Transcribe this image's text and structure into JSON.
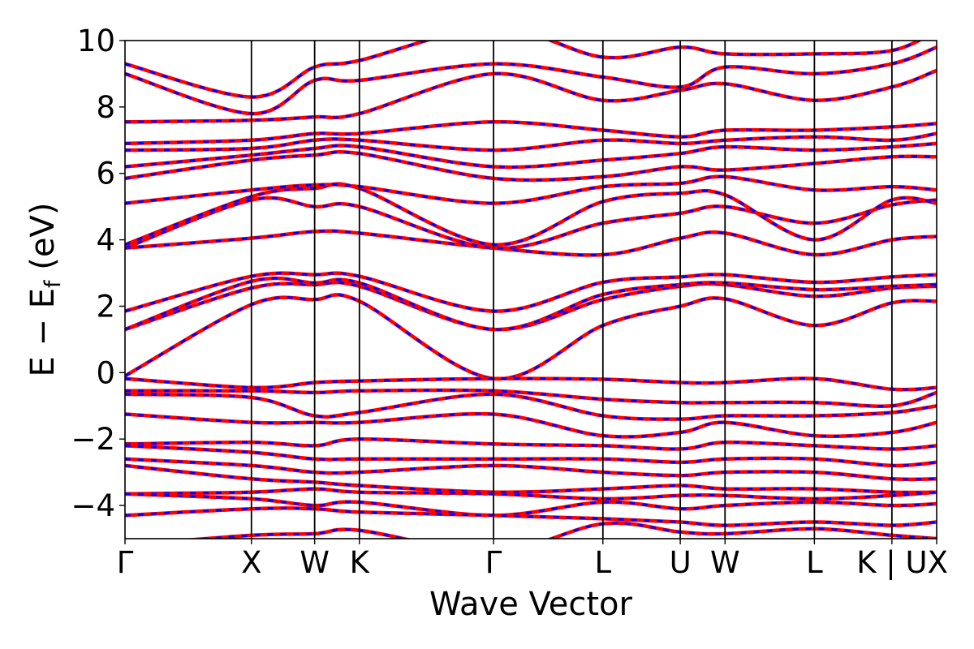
{
  "chart_data": {
    "type": "line",
    "title": "",
    "xlabel": "Wave Vector",
    "ylabel": "E − E_f (eV)",
    "ylabel_main": "E − E",
    "ylabel_sub": "f",
    "ylabel_tail": " (eV)",
    "ylim": [
      -5,
      10
    ],
    "y_ticks": [
      "−4",
      "−2",
      "0",
      "2",
      "4",
      "6",
      "8",
      "10"
    ],
    "y_tick_values": [
      -4,
      -2,
      0,
      2,
      4,
      6,
      8,
      10
    ],
    "x_ticks": [
      {
        "label": "Γ",
        "x": 0
      },
      {
        "label": "X",
        "x": 1.0
      },
      {
        "label": "W",
        "x": 1.5
      },
      {
        "label": "K",
        "x": 1.854
      },
      {
        "label": "Γ",
        "x": 2.915
      },
      {
        "label": "L",
        "x": 3.78
      },
      {
        "label": "U",
        "x": 4.392
      },
      {
        "label": "W",
        "x": 4.746
      },
      {
        "label": "L",
        "x": 5.453
      },
      {
        "label": "K | U",
        "x": 6.066
      },
      {
        "label": "X",
        "x": 6.42
      }
    ],
    "xlim": [
      0,
      6.42
    ],
    "grid": false,
    "legend": "none",
    "series_colors": {
      "line": "#ff0000",
      "dashed_overlay": "#0000ff"
    },
    "bands": [
      {
        "y": [
          -0.1,
          2.05,
          2.2,
          2.15,
          -0.18,
          1.42,
          2.0,
          2.22,
          1.42,
          2.1,
          2.15
        ]
      },
      {
        "y": [
          1.3,
          2.55,
          2.65,
          2.6,
          1.3,
          2.2,
          2.6,
          2.65,
          2.3,
          2.55,
          2.6
        ]
      },
      {
        "y": [
          1.3,
          2.75,
          2.7,
          2.7,
          1.3,
          2.35,
          2.65,
          2.7,
          2.5,
          2.6,
          2.65
        ]
      },
      {
        "y": [
          1.85,
          2.9,
          2.95,
          2.9,
          1.85,
          2.72,
          2.88,
          2.95,
          2.72,
          2.88,
          2.95
        ]
      },
      {
        "y": [
          3.75,
          4.05,
          4.25,
          4.2,
          3.75,
          3.55,
          4.05,
          4.2,
          3.55,
          4.0,
          4.1
        ]
      },
      {
        "y": [
          3.75,
          5.2,
          5.0,
          5.0,
          3.75,
          4.5,
          4.8,
          5.0,
          4.5,
          5.05,
          5.2
        ]
      },
      {
        "y": [
          3.85,
          5.3,
          5.55,
          5.55,
          3.85,
          5.15,
          5.4,
          5.35,
          4.0,
          5.2,
          5.1
        ]
      },
      {
        "y": [
          5.1,
          5.5,
          5.65,
          5.6,
          5.1,
          5.6,
          5.7,
          5.9,
          5.5,
          5.6,
          5.5
        ]
      },
      {
        "y": [
          5.85,
          6.4,
          6.55,
          6.6,
          5.85,
          5.9,
          6.2,
          6.1,
          6.3,
          6.5,
          6.5
        ]
      },
      {
        "y": [
          6.2,
          6.55,
          6.75,
          6.8,
          6.2,
          6.4,
          6.6,
          6.8,
          6.7,
          6.8,
          6.9
        ]
      },
      {
        "y": [
          6.7,
          6.75,
          7.0,
          7.0,
          6.7,
          7.0,
          6.9,
          7.0,
          7.1,
          7.0,
          7.2
        ]
      },
      {
        "y": [
          6.9,
          7.0,
          7.2,
          7.2,
          7.55,
          7.3,
          7.1,
          7.3,
          7.3,
          7.4,
          7.5
        ]
      },
      {
        "y": [
          7.55,
          7.6,
          7.7,
          7.8,
          9.0,
          8.2,
          8.5,
          8.7,
          8.2,
          8.6,
          9.1
        ]
      },
      {
        "y": [
          9.0,
          7.8,
          8.8,
          8.8,
          9.3,
          8.9,
          8.6,
          9.2,
          9.0,
          9.3,
          9.8
        ]
      },
      {
        "y": [
          9.3,
          8.3,
          9.2,
          9.4,
          10.4,
          9.5,
          9.8,
          9.6,
          9.6,
          9.7,
          10.3
        ]
      },
      {
        "y": [
          -0.18,
          -0.45,
          -0.3,
          -0.25,
          -0.18,
          -0.2,
          -0.3,
          -0.3,
          -0.18,
          -0.5,
          -0.45
        ]
      },
      {
        "y": [
          -0.55,
          -0.55,
          -0.6,
          -0.55,
          -0.55,
          -0.8,
          -0.9,
          -0.9,
          -0.9,
          -1.0,
          -0.6
        ]
      },
      {
        "y": [
          -0.65,
          -0.75,
          -1.3,
          -1.2,
          -0.65,
          -1.3,
          -1.4,
          -1.3,
          -1.3,
          -1.2,
          -1.0
        ]
      },
      {
        "y": [
          -1.25,
          -1.5,
          -1.5,
          -1.5,
          -1.25,
          -1.9,
          -1.8,
          -1.5,
          -1.9,
          -1.8,
          -1.5
        ]
      },
      {
        "y": [
          -2.15,
          -2.1,
          -2.2,
          -2.0,
          -2.15,
          -2.2,
          -2.3,
          -2.1,
          -2.2,
          -2.3,
          -2.2
        ]
      },
      {
        "y": [
          -2.2,
          -2.4,
          -2.6,
          -2.6,
          -2.6,
          -2.6,
          -2.7,
          -2.6,
          -2.6,
          -2.8,
          -2.7
        ]
      },
      {
        "y": [
          -2.6,
          -2.8,
          -3.0,
          -3.0,
          -2.8,
          -3.0,
          -3.1,
          -3.0,
          -3.0,
          -3.2,
          -3.2
        ]
      },
      {
        "y": [
          -2.8,
          -3.2,
          -3.3,
          -3.4,
          -3.6,
          -3.5,
          -3.4,
          -3.5,
          -3.5,
          -3.6,
          -3.6
        ]
      },
      {
        "y": [
          -3.65,
          -3.6,
          -3.5,
          -3.6,
          -3.65,
          -3.8,
          -3.7,
          -3.7,
          -3.8,
          -3.7,
          -3.6
        ]
      },
      {
        "y": [
          -3.65,
          -3.8,
          -4.0,
          -3.9,
          -4.3,
          -3.9,
          -4.1,
          -4.0,
          -3.9,
          -4.0,
          -3.95
        ]
      },
      {
        "y": [
          -4.3,
          -4.1,
          -4.1,
          -4.2,
          -4.3,
          -4.4,
          -4.5,
          -4.6,
          -4.5,
          -4.6,
          -4.5
        ]
      },
      {
        "y": [
          -5.2,
          -4.9,
          -4.85,
          -4.75,
          -5.4,
          -4.55,
          -4.8,
          -4.85,
          -4.7,
          -4.9,
          -5.0
        ]
      }
    ]
  }
}
